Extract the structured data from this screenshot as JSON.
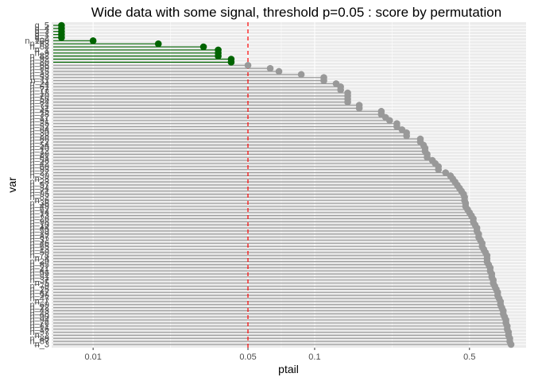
{
  "chart_data": {
    "type": "lollipop",
    "title": "Wide data with some signal, threshold p=0.05 : score by permutation",
    "xlabel": "ptail",
    "ylabel": "var",
    "x_scale": "log10",
    "x_ticks": [
      {
        "value": 0.01,
        "label": "0.01"
      },
      {
        "value": 0.05,
        "label": "0.05"
      },
      {
        "value": 0.1,
        "label": "0.1"
      },
      {
        "value": 0.5,
        "label": "0.5"
      }
    ],
    "xlim": [
      0.0065,
      0.9
    ],
    "threshold": 0.05,
    "grid": true,
    "colors": {
      "panel": "#ebebeb",
      "grid": "#ffffff",
      "significant": "#006400",
      "not_significant": "#999999",
      "threshold_line": "#ff0000"
    },
    "y_labels": [
      "g_5",
      "g_4",
      "g_3",
      "g_1",
      "g_2",
      "n_100",
      "n_63",
      "n_68",
      "n_1",
      "n_9",
      "n_82",
      "n_92",
      "n_80",
      "n_66",
      "n_89",
      "n_15",
      "n_33",
      "n_53",
      "n_11",
      "n_24",
      "n_61",
      "n_77",
      "n_18",
      "n_70",
      "n_56",
      "n_84",
      "n_74",
      "n_31",
      "n_45",
      "n_38",
      "n_17",
      "n_91",
      "n_35",
      "n_52",
      "n_64",
      "n_30",
      "n_28",
      "n_86",
      "n_72",
      "n_54",
      "n_40",
      "n_12",
      "n_20",
      "n_81",
      "n_58",
      "n_42",
      "n_60",
      "n_93",
      "n_27",
      "n_39",
      "n_8",
      "n_23",
      "n_57",
      "n_34",
      "n_71",
      "n_95",
      "n_82",
      "n_6",
      "n_36",
      "n_49",
      "n_62",
      "n_14",
      "n_73",
      "n_26",
      "n_98",
      "n_10",
      "n_44",
      "n_59",
      "n_19",
      "n_87",
      "n_32",
      "n_46",
      "n_65",
      "n_13",
      "n_50",
      "n_78",
      "n_4",
      "n_29",
      "n_85",
      "n_21",
      "n_41",
      "n_99",
      "n_51",
      "n_37",
      "n_5",
      "n_79",
      "n_25",
      "n_47",
      "n_96",
      "n_47",
      "n_7",
      "n_69",
      "n_22",
      "n_43",
      "n_48",
      "n_90",
      "n_94",
      "n_76",
      "n_61",
      "n_16",
      "n_97",
      "n_2",
      "n_88",
      "n_67",
      "n_3"
    ],
    "values": [
      0.0072,
      0.0072,
      0.0072,
      0.0072,
      0.0072,
      0.01,
      0.0197,
      0.0315,
      0.0367,
      0.0367,
      0.0367,
      0.042,
      0.042,
      0.05,
      0.063,
      0.069,
      0.087,
      0.11,
      0.11,
      0.125,
      0.131,
      0.131,
      0.141,
      0.141,
      0.141,
      0.141,
      0.159,
      0.159,
      0.2,
      0.2,
      0.209,
      0.218,
      0.235,
      0.235,
      0.248,
      0.26,
      0.26,
      0.3,
      0.3,
      0.31,
      0.315,
      0.315,
      0.322,
      0.322,
      0.34,
      0.35,
      0.362,
      0.362,
      0.39,
      0.41,
      0.42,
      0.43,
      0.44,
      0.45,
      0.46,
      0.47,
      0.475,
      0.475,
      0.48,
      0.48,
      0.49,
      0.5,
      0.51,
      0.52,
      0.52,
      0.53,
      0.54,
      0.54,
      0.55,
      0.55,
      0.56,
      0.57,
      0.57,
      0.58,
      0.59,
      0.6,
      0.6,
      0.6,
      0.61,
      0.62,
      0.62,
      0.63,
      0.63,
      0.64,
      0.64,
      0.65,
      0.66,
      0.67,
      0.67,
      0.68,
      0.69,
      0.69,
      0.7,
      0.71,
      0.71,
      0.72,
      0.73,
      0.73,
      0.74,
      0.74,
      0.75,
      0.75,
      0.76,
      0.76,
      0.77
    ]
  }
}
